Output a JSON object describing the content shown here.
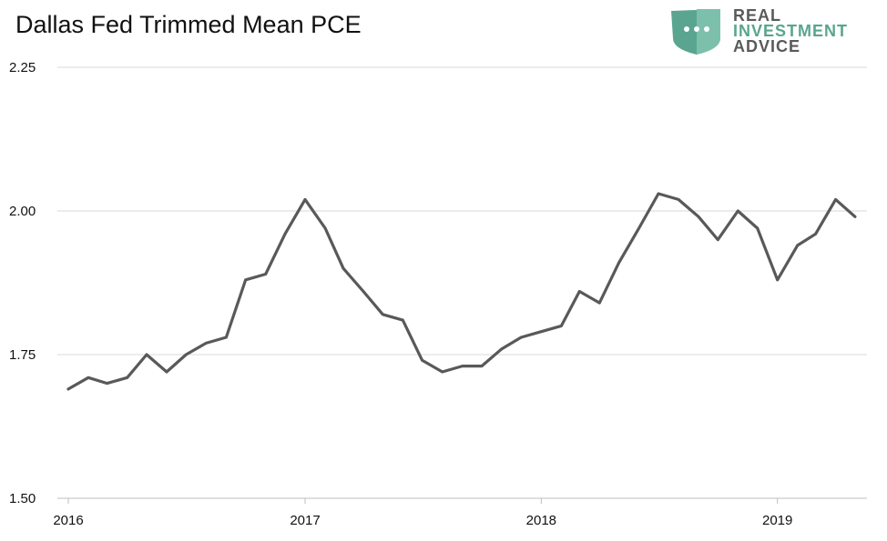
{
  "header": {
    "title": "Dallas Fed Trimmed Mean PCE"
  },
  "logo": {
    "words": [
      "REAL",
      "INVESTMENT",
      "ADVICE"
    ],
    "icon": "speech-bubble-shield-icon",
    "colors": {
      "dark": "#5a5a5a",
      "teal": "#5aa58f",
      "teal_light": "#7cc0ab"
    }
  },
  "colors": {
    "line": "#595959",
    "grid": "#d9d9d9",
    "axis": "#bfbfbf",
    "background": "#ffffff"
  },
  "chart_data": {
    "type": "line",
    "title": "Dallas Fed Trimmed Mean PCE",
    "xlabel": "",
    "ylabel": "",
    "ylim": [
      1.5,
      2.25
    ],
    "yticks": [
      "1.50",
      "1.75",
      "2.00",
      "2.25"
    ],
    "xticks": [
      "2016",
      "2017",
      "2018",
      "2019"
    ],
    "grid": true,
    "series": [
      {
        "x": [
          "2016-01",
          "2016-02",
          "2016-03",
          "2016-04",
          "2016-05",
          "2016-06",
          "2016-07",
          "2016-08",
          "2016-09",
          "2016-10",
          "2016-11",
          "2016-12",
          "2017-01",
          "2017-02",
          "2017-03",
          "2017-04",
          "2017-05",
          "2017-06",
          "2017-07",
          "2017-08",
          "2017-09",
          "2017-10",
          "2017-11",
          "2017-12",
          "2018-01",
          "2018-02",
          "2018-03",
          "2018-04",
          "2018-05",
          "2018-06",
          "2018-07",
          "2018-08",
          "2018-09",
          "2018-10",
          "2018-11",
          "2018-12",
          "2019-01",
          "2019-02",
          "2019-03",
          "2019-04",
          "2019-05"
        ],
        "values": [
          1.69,
          1.71,
          1.7,
          1.71,
          1.75,
          1.72,
          1.75,
          1.77,
          1.78,
          1.88,
          1.89,
          1.96,
          2.02,
          1.97,
          1.9,
          1.86,
          1.82,
          1.81,
          1.74,
          1.72,
          1.73,
          1.73,
          1.76,
          1.78,
          1.79,
          1.8,
          1.86,
          1.84,
          1.91,
          1.97,
          2.03,
          2.02,
          1.99,
          1.95,
          2.0,
          1.97,
          1.88,
          1.94,
          1.96,
          2.02,
          1.99
        ]
      }
    ]
  }
}
